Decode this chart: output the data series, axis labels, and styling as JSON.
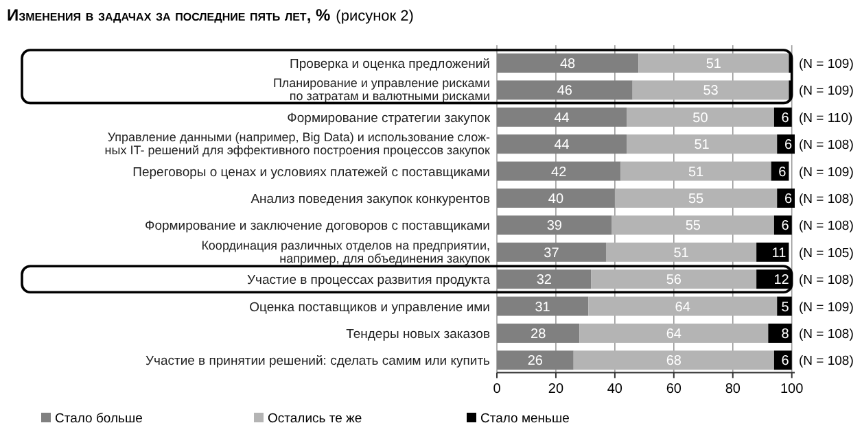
{
  "chart_data": {
    "type": "bar",
    "orientation": "horizontal",
    "stacked": true,
    "title": "Изменения в задачах за последние пять лет, %",
    "subtitle": "(рисунок 2)",
    "categories": [
      "Проверка и оценка предложений",
      "Планирование и управление рисками\nпо затратам и валютными рисками",
      "Формирование стратегии закупок",
      "Управление данными (например, Big Data) и использование слож-\nных IT- решений для эффективного построения процессов закупок",
      "Переговоры о ценах и условиях платежей с поставщиками",
      "Анализ поведения закупок конкурентов",
      "Формирование и заключение договоров с поставщиками",
      "Координация различных отделов на предприятии,\nнапример, для объединения закупок",
      "Участие в процессах развития продукта",
      "Оценка поставщиков и управление ими",
      "Тендеры новых заказов",
      "Участие в принятии решений: сделать самим или купить"
    ],
    "series": [
      {
        "name": "Стало больше",
        "color": "#808080",
        "values": [
          48,
          46,
          44,
          44,
          42,
          40,
          39,
          37,
          32,
          31,
          28,
          26
        ],
        "value_labels": [
          "48",
          "46",
          "44",
          "44",
          "42",
          "40",
          "39",
          "37",
          "32",
          "31",
          "28",
          "26"
        ]
      },
      {
        "name": "Остались те же",
        "color": "#b4b4b4",
        "values": [
          51,
          53,
          50,
          51,
          51,
          55,
          55,
          51,
          56,
          64,
          64,
          68
        ],
        "value_labels": [
          "51",
          "53",
          "50",
          "51",
          "51",
          "55",
          "55",
          "51",
          "56",
          "64",
          "64",
          "68"
        ]
      },
      {
        "name": "Стало меньше",
        "color": "#000000",
        "values": [
          1,
          1,
          6,
          6,
          6,
          6,
          6,
          11,
          12,
          5,
          8,
          6
        ],
        "value_labels": [
          null,
          null,
          "6",
          "6",
          "6",
          "6",
          "6",
          "11",
          "12",
          "5",
          "8",
          "6"
        ]
      }
    ],
    "xlim": [
      0,
      101
    ],
    "xticks": [
      0,
      20,
      40,
      60,
      80,
      100
    ],
    "grid": "x",
    "legend": "bottom left",
    "annotations": [
      "(N = 109)",
      "(N = 109)",
      "(N = 110)",
      "(N = 108)",
      "(N = 109)",
      "(N = 108)",
      "(N = 108)",
      "(N = 105)",
      "(N = 108)",
      "(N = 109)",
      "(N = 108)",
      "(N = 108)"
    ]
  }
}
